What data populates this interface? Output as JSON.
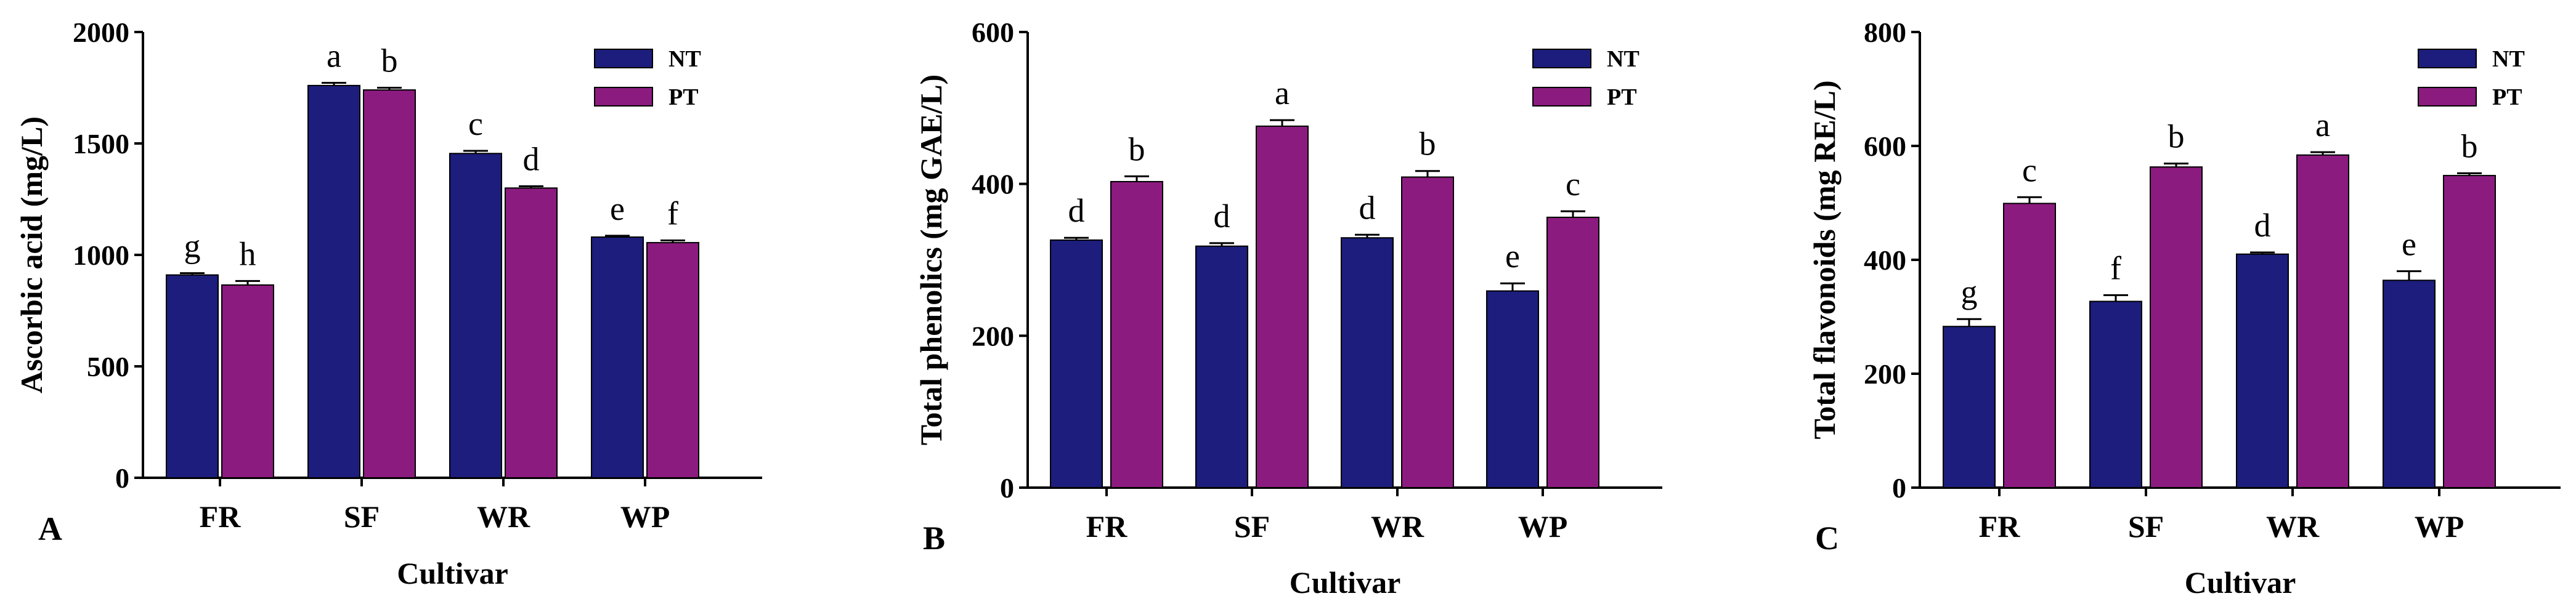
{
  "colors": {
    "NT": "#1c1d7c",
    "PT": "#8c1b7f",
    "axis": "#000000"
  },
  "chart_data": [
    {
      "type": "bar",
      "panel_label": "A",
      "ylabel": "Ascorbic acid (mg/L)",
      "xlabel": "Cultivar",
      "categories": [
        "FR",
        "SF",
        "WR",
        "WP"
      ],
      "ylim": [
        0,
        2000
      ],
      "yticks": [
        0,
        500,
        1000,
        1500,
        2000
      ],
      "legend_position": "top-right",
      "grid": false,
      "series": [
        {
          "name": "NT",
          "values": [
            910,
            1760,
            1455,
            1080
          ],
          "errors": [
            8,
            12,
            12,
            6
          ],
          "letters": [
            "g",
            "a",
            "c",
            "e"
          ]
        },
        {
          "name": "PT",
          "values": [
            865,
            1740,
            1300,
            1055
          ],
          "errors": [
            18,
            10,
            8,
            10
          ],
          "letters": [
            "h",
            "b",
            "d",
            "f"
          ]
        }
      ]
    },
    {
      "type": "bar",
      "panel_label": "B",
      "ylabel": "Total phenolics (mg GAE/L)",
      "xlabel": "Cultivar",
      "categories": [
        "FR",
        "SF",
        "WR",
        "WP"
      ],
      "ylim": [
        0,
        600
      ],
      "yticks": [
        0,
        200,
        400,
        600
      ],
      "legend_position": "top-right",
      "grid": false,
      "series": [
        {
          "name": "NT",
          "values": [
            326,
            318,
            329,
            259
          ],
          "errors": [
            3,
            4,
            4,
            10
          ],
          "letters": [
            "d",
            "d",
            "d",
            "e"
          ]
        },
        {
          "name": "PT",
          "values": [
            403,
            476,
            409,
            356
          ],
          "errors": [
            7,
            8,
            8,
            8
          ],
          "letters": [
            "b",
            "a",
            "b",
            "c"
          ]
        }
      ]
    },
    {
      "type": "bar",
      "panel_label": "C",
      "ylabel": "Total flavonoids (mg RE/L)",
      "xlabel": "Cultivar",
      "categories": [
        "FR",
        "SF",
        "WR",
        "WP"
      ],
      "ylim": [
        0,
        800
      ],
      "yticks": [
        0,
        200,
        400,
        600,
        800
      ],
      "legend_position": "top-right",
      "grid": false,
      "series": [
        {
          "name": "NT",
          "values": [
            283,
            327,
            410,
            364
          ],
          "errors": [
            13,
            11,
            3,
            16
          ],
          "letters": [
            "g",
            "f",
            "d",
            "e"
          ]
        },
        {
          "name": "PT",
          "values": [
            499,
            563,
            584,
            548
          ],
          "errors": [
            11,
            6,
            5,
            4
          ],
          "letters": [
            "c",
            "b",
            "a",
            "b"
          ]
        }
      ]
    }
  ]
}
